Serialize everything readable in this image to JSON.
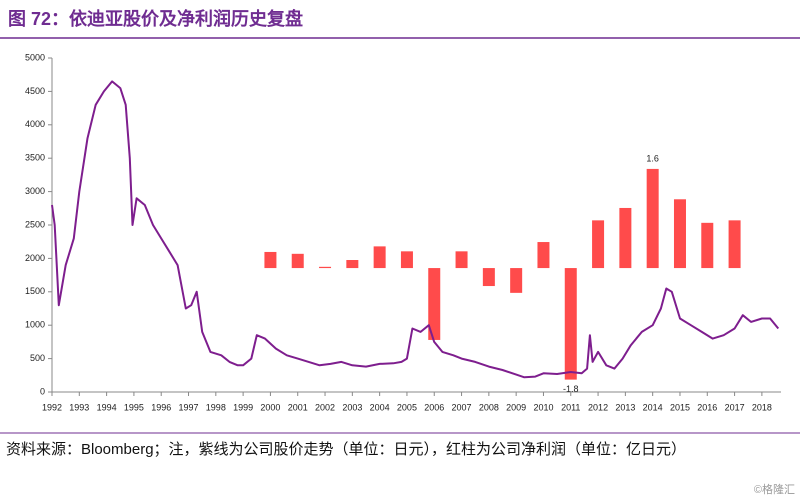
{
  "chart_data": {
    "type": "combo",
    "title": "图 72：依迪亚股价及净利润历史复盘",
    "source": "资料来源：Bloomberg；注，紫线为公司股价走势（单位：日元），红柱为公司净利润（单位：亿日元）",
    "watermark": "©格隆汇",
    "xlim": [
      1992,
      2018.7
    ],
    "xticks": [
      1992,
      1993,
      1994,
      1995,
      1996,
      1997,
      1998,
      1999,
      2000,
      2001,
      2002,
      2003,
      2004,
      2005,
      2006,
      2007,
      2008,
      2009,
      2010,
      2011,
      2012,
      2013,
      2014,
      2015,
      2016,
      2017,
      2018
    ],
    "ylim": [
      0,
      5000
    ],
    "yticks": [
      0,
      500,
      1000,
      1500,
      2000,
      2500,
      3000,
      3500,
      4000,
      4500,
      5000
    ],
    "y2lim": [
      -2.0,
      3.39
    ],
    "grid": false,
    "series": [
      {
        "type": "line",
        "color": "#7e1e8e",
        "x": [
          1992.0,
          1992.1,
          1992.25,
          1992.5,
          1992.8,
          1993.0,
          1993.3,
          1993.6,
          1993.9,
          1994.2,
          1994.5,
          1994.7,
          1994.85,
          1994.95,
          1995.1,
          1995.4,
          1995.7,
          1996.0,
          1996.3,
          1996.6,
          1996.9,
          1997.1,
          1997.3,
          1997.5,
          1997.8,
          1998.2,
          1998.5,
          1998.8,
          1999.0,
          1999.3,
          1999.5,
          1999.8,
          2000.2,
          2000.6,
          2001.0,
          2001.4,
          2001.8,
          2002.2,
          2002.6,
          2003.0,
          2003.5,
          2004.0,
          2004.5,
          2004.8,
          2005.0,
          2005.2,
          2005.5,
          2005.8,
          2006.0,
          2006.3,
          2006.7,
          2007.0,
          2007.5,
          2008.0,
          2008.5,
          2009.0,
          2009.3,
          2009.7,
          2010.0,
          2010.5,
          2011.0,
          2011.4,
          2011.6,
          2011.7,
          2011.8,
          2012.0,
          2012.3,
          2012.6,
          2012.9,
          2013.2,
          2013.6,
          2014.0,
          2014.3,
          2014.5,
          2014.7,
          2015.0,
          2015.4,
          2015.8,
          2016.2,
          2016.6,
          2017.0,
          2017.3,
          2017.6,
          2018.0,
          2018.3,
          2018.6
        ],
        "values": [
          2800,
          2500,
          1300,
          1900,
          2300,
          3000,
          3800,
          4300,
          4500,
          4650,
          4550,
          4300,
          3500,
          2500,
          2900,
          2800,
          2500,
          2300,
          2100,
          1900,
          1250,
          1300,
          1500,
          900,
          600,
          550,
          450,
          400,
          400,
          500,
          850,
          800,
          650,
          550,
          500,
          450,
          400,
          420,
          450,
          400,
          380,
          420,
          430,
          450,
          500,
          950,
          900,
          1000,
          750,
          600,
          550,
          500,
          450,
          380,
          330,
          260,
          220,
          230,
          280,
          270,
          300,
          280,
          350,
          850,
          450,
          600,
          400,
          350,
          500,
          700,
          900,
          1000,
          1250,
          1550,
          1500,
          1100,
          1000,
          900,
          800,
          850,
          950,
          1150,
          1050,
          1100,
          1100,
          950
        ]
      },
      {
        "type": "bar",
        "color": "#ff4b4b",
        "axis": "y2",
        "x": [
          2000,
          2001,
          2002,
          2003,
          2004,
          2005,
          2006,
          2007,
          2008,
          2009,
          2010,
          2011,
          2012,
          2013,
          2014,
          2015,
          2016,
          2017
        ],
        "values": [
          0.26,
          0.23,
          0.02,
          0.13,
          0.35,
          0.27,
          -1.16,
          0.27,
          -0.29,
          -0.4,
          0.42,
          -1.8,
          0.77,
          0.97,
          1.6,
          1.11,
          0.73,
          0.77
        ],
        "value_labels": [
          null,
          null,
          null,
          null,
          null,
          null,
          null,
          null,
          null,
          null,
          null,
          "-1.8",
          null,
          null,
          "1.6",
          null,
          null,
          null
        ]
      }
    ]
  }
}
